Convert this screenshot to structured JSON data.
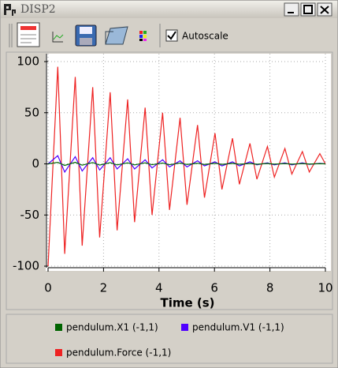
{
  "window": {
    "title": "DISP2"
  },
  "toolbar": {
    "autoscale": "Autoscale"
  },
  "chart_data": {
    "type": "line",
    "xlabel": "Time (s)",
    "x": [
      0,
      0.35,
      0.6,
      0.98,
      1.23,
      1.61,
      1.86,
      2.24,
      2.49,
      2.87,
      3.12,
      3.5,
      3.75,
      4.13,
      4.38,
      4.76,
      5.01,
      5.39,
      5.64,
      6.02,
      6.27,
      6.65,
      6.9,
      7.28,
      7.53,
      7.91,
      8.16,
      8.54,
      8.79,
      9.17,
      9.42,
      9.8,
      10
    ],
    "series": [
      {
        "name": "pendulum.X1 (-1,1)",
        "color": "#006400",
        "values": [
          0,
          1.5,
          -1.5,
          1.5,
          -1.3,
          1.3,
          -1.2,
          1.2,
          -1,
          1,
          -1,
          1,
          -0.8,
          0.8,
          -0.8,
          0.8,
          -0.6,
          0.6,
          -0.6,
          0.6,
          -0.5,
          0.5,
          -0.4,
          0.4,
          -0.4,
          0.4,
          -0.3,
          0.3,
          -0.3,
          0.3,
          -0.2,
          0.2,
          0
        ]
      },
      {
        "name": "pendulum.V1 (-1,1)",
        "color": "#5000ff",
        "values": [
          0,
          8,
          -8,
          7,
          -7,
          6,
          -6,
          6,
          -5,
          5,
          -5,
          4,
          -4,
          4,
          -3,
          3,
          -3,
          3,
          -2,
          2,
          -2,
          2,
          -2,
          2,
          -1,
          1,
          -1,
          1,
          -1,
          1,
          -0.5,
          0.5,
          0
        ]
      },
      {
        "name": "pendulum.Force (-1,1)",
        "color": "#ee2222",
        "values": [
          -100,
          95,
          -88,
          85,
          -80,
          75,
          -72,
          70,
          -65,
          63,
          -57,
          55,
          -50,
          50,
          -45,
          45,
          -40,
          38,
          -33,
          30,
          -25,
          25,
          -20,
          20,
          -15,
          17,
          -13,
          15,
          -10,
          12,
          -8,
          10,
          0
        ]
      }
    ],
    "xlim": [
      0,
      10
    ],
    "xticks": [
      0,
      2,
      4,
      6,
      8,
      10
    ],
    "ylim": [
      -100,
      100
    ],
    "yticks": [
      -100,
      -50,
      0,
      50,
      100
    ],
    "grid": true
  }
}
